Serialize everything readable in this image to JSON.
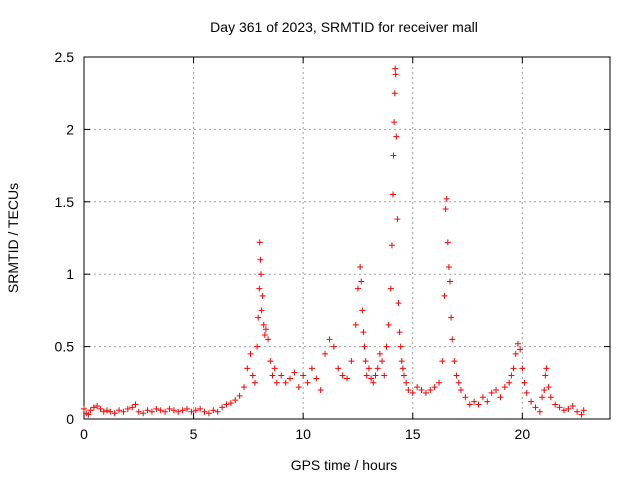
{
  "chart_data": {
    "type": "scatter",
    "title": "Day 361 of 2023, SRMTID for receiver mall",
    "xlabel": "GPS time / hours",
    "ylabel": "SRMTID / TECUs",
    "xlim": [
      0,
      24
    ],
    "ylim": [
      0,
      2.5
    ],
    "x_ticks": [
      0,
      5,
      10,
      15,
      20
    ],
    "x_tick_labels": [
      "0",
      "5",
      "10",
      "15",
      "20"
    ],
    "y_ticks": [
      0,
      0.5,
      1,
      1.5,
      2,
      2.5
    ],
    "y_tick_labels": [
      "0",
      "0.5",
      "1",
      "1.5",
      "2",
      "2.5"
    ],
    "grid": true,
    "marker": "+",
    "series": [
      {
        "name": "SRMTID",
        "color": "#ff0000",
        "x": [
          0.0,
          0.1,
          0.2,
          0.3,
          0.45,
          0.6,
          0.75,
          0.9,
          1.05,
          1.2,
          1.4,
          1.6,
          1.8,
          2.0,
          2.2,
          2.35,
          2.5,
          2.7,
          2.9,
          3.1,
          3.3,
          3.5,
          3.7,
          3.9,
          4.1,
          4.3,
          4.5,
          4.7,
          4.9,
          5.1,
          5.3,
          5.5,
          5.7,
          5.9,
          6.1,
          6.3,
          6.5,
          6.7,
          6.9,
          7.1,
          7.3,
          7.45,
          7.6,
          7.7,
          7.8,
          7.9,
          7.95,
          8.0,
          8.02,
          8.05,
          8.08,
          8.1,
          8.15,
          8.2,
          8.25,
          8.3,
          8.4,
          8.5,
          8.6,
          8.7,
          8.8,
          9.0,
          9.2,
          9.4,
          9.6,
          9.8,
          10.0,
          10.2,
          10.4,
          10.6,
          10.8,
          11.0,
          11.2,
          11.4,
          11.6,
          11.8,
          12.0,
          12.2,
          12.4,
          12.5,
          12.6,
          12.65,
          12.7,
          12.75,
          12.8,
          12.85,
          12.9,
          13.0,
          13.1,
          13.2,
          13.3,
          13.4,
          13.5,
          13.6,
          13.7,
          13.8,
          13.9,
          14.0,
          14.05,
          14.1,
          14.12,
          14.15,
          14.18,
          14.2,
          14.22,
          14.25,
          14.3,
          14.35,
          14.4,
          14.45,
          14.5,
          14.55,
          14.6,
          14.7,
          14.8,
          15.0,
          15.2,
          15.4,
          15.6,
          15.8,
          16.0,
          16.2,
          16.35,
          16.45,
          16.5,
          16.55,
          16.6,
          16.65,
          16.7,
          16.75,
          16.8,
          16.9,
          17.0,
          17.1,
          17.2,
          17.4,
          17.6,
          17.8,
          18.0,
          18.2,
          18.4,
          18.6,
          18.8,
          19.0,
          19.2,
          19.4,
          19.5,
          19.6,
          19.7,
          19.8,
          19.9,
          20.0,
          20.1,
          20.2,
          20.4,
          20.6,
          20.8,
          20.9,
          21.0,
          21.05,
          21.1,
          21.2,
          21.3,
          21.5,
          21.7,
          21.9,
          22.1,
          22.3,
          22.5,
          22.7,
          22.8
        ],
        "values": [
          0.07,
          0.04,
          0.03,
          0.06,
          0.08,
          0.09,
          0.07,
          0.05,
          0.06,
          0.05,
          0.04,
          0.06,
          0.05,
          0.07,
          0.08,
          0.1,
          0.05,
          0.04,
          0.06,
          0.05,
          0.07,
          0.06,
          0.05,
          0.07,
          0.06,
          0.05,
          0.06,
          0.07,
          0.05,
          0.06,
          0.07,
          0.05,
          0.04,
          0.06,
          0.05,
          0.08,
          0.1,
          0.11,
          0.13,
          0.16,
          0.22,
          0.35,
          0.45,
          0.3,
          0.25,
          0.5,
          0.7,
          0.9,
          1.22,
          1.1,
          1.0,
          0.75,
          0.85,
          0.65,
          0.58,
          0.62,
          0.55,
          0.4,
          0.3,
          0.35,
          0.25,
          0.3,
          0.25,
          0.28,
          0.32,
          0.22,
          0.3,
          0.25,
          0.35,
          0.28,
          0.2,
          0.45,
          0.55,
          0.5,
          0.35,
          0.3,
          0.28,
          0.4,
          0.65,
          0.9,
          1.05,
          0.95,
          0.75,
          0.6,
          0.5,
          0.4,
          0.3,
          0.35,
          0.28,
          0.25,
          0.3,
          0.35,
          0.45,
          0.4,
          0.3,
          0.5,
          0.65,
          0.9,
          1.2,
          1.55,
          1.82,
          2.05,
          2.25,
          2.42,
          2.38,
          1.95,
          1.38,
          0.8,
          0.6,
          0.5,
          0.4,
          0.35,
          0.3,
          0.25,
          0.2,
          0.18,
          0.22,
          0.2,
          0.18,
          0.2,
          0.22,
          0.25,
          0.4,
          0.85,
          1.45,
          1.52,
          1.22,
          1.05,
          0.95,
          0.7,
          0.55,
          0.4,
          0.3,
          0.25,
          0.2,
          0.15,
          0.1,
          0.12,
          0.1,
          0.15,
          0.12,
          0.18,
          0.2,
          0.15,
          0.22,
          0.25,
          0.3,
          0.35,
          0.45,
          0.52,
          0.48,
          0.35,
          0.25,
          0.18,
          0.12,
          0.08,
          0.05,
          0.15,
          0.2,
          0.3,
          0.35,
          0.22,
          0.15,
          0.1,
          0.08,
          0.06,
          0.07,
          0.09,
          0.05,
          0.03,
          0.06
        ]
      }
    ]
  }
}
